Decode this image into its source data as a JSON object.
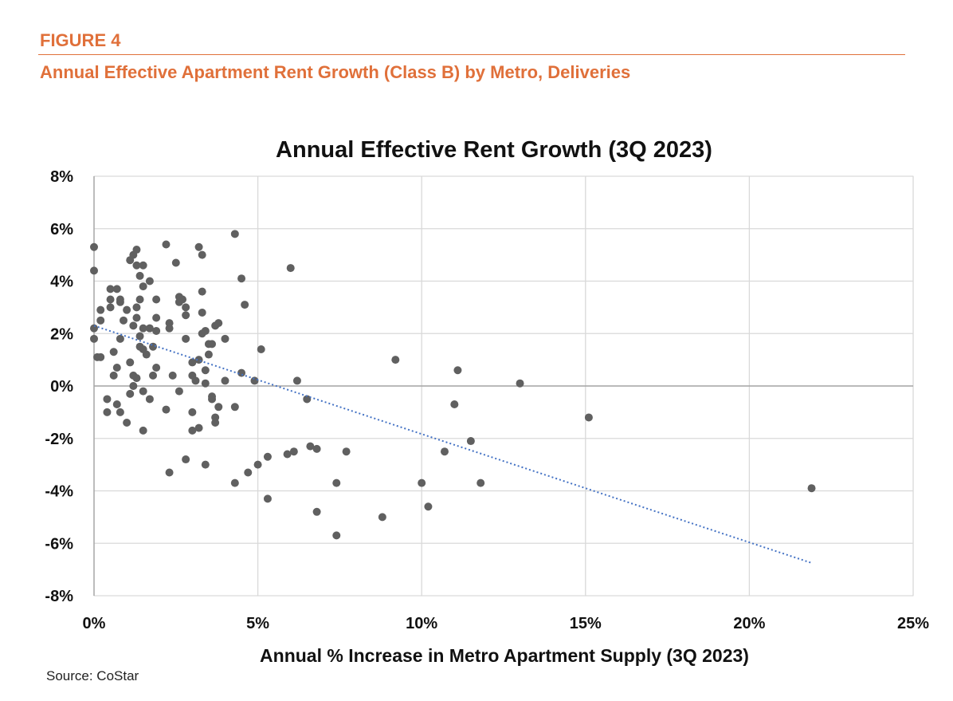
{
  "figure": {
    "label": "FIGURE 4",
    "title": "Annual Effective Apartment Rent Growth (Class B) by Metro, Deliveries",
    "source": "Source: CoStar"
  },
  "chart_data": {
    "type": "scatter",
    "title": "Annual Effective Rent Growth (3Q 2023)",
    "xlabel": "Annual % Increase in Metro Apartment Supply (3Q 2023)",
    "ylabel": "",
    "xlim": [
      0,
      25
    ],
    "ylim": [
      -8,
      8
    ],
    "x_ticks": [
      0,
      5,
      10,
      15,
      20,
      25
    ],
    "x_tick_labels": [
      "0%",
      "5%",
      "10%",
      "15%",
      "20%",
      "25%"
    ],
    "y_ticks": [
      8,
      6,
      4,
      2,
      0,
      -2,
      -4,
      -6,
      -8
    ],
    "y_tick_labels": [
      "8%",
      "6%",
      "4%",
      "2%",
      "0%",
      "-2%",
      "-4%",
      "-6%",
      "-8%"
    ],
    "grid": true,
    "point_color": "#606060",
    "trendline": {
      "type": "linear",
      "color": "#4472c4",
      "x": [
        0,
        21.9
      ],
      "y": [
        2.3,
        -6.75
      ]
    },
    "points": [
      [
        0,
        5.3
      ],
      [
        0,
        4.4
      ],
      [
        0,
        2.2
      ],
      [
        0,
        1.8
      ],
      [
        0.1,
        1.1
      ],
      [
        0.2,
        1.1
      ],
      [
        0.2,
        2.9
      ],
      [
        0.2,
        2.5
      ],
      [
        0.4,
        -0.5
      ],
      [
        0.4,
        -1.0
      ],
      [
        0.5,
        3.7
      ],
      [
        0.5,
        3.3
      ],
      [
        0.5,
        3.0
      ],
      [
        0.6,
        0.4
      ],
      [
        0.6,
        1.3
      ],
      [
        0.7,
        3.7
      ],
      [
        0.7,
        -0.7
      ],
      [
        0.7,
        0.7
      ],
      [
        0.8,
        1.8
      ],
      [
        0.8,
        3.3
      ],
      [
        0.8,
        3.2
      ],
      [
        0.8,
        -1.0
      ],
      [
        0.9,
        2.5
      ],
      [
        1.0,
        2.9
      ],
      [
        1.0,
        -1.4
      ],
      [
        1.1,
        -0.3
      ],
      [
        1.1,
        4.8
      ],
      [
        1.1,
        0.9
      ],
      [
        1.2,
        2.3
      ],
      [
        1.2,
        0.4
      ],
      [
        1.2,
        0.0
      ],
      [
        1.2,
        5.0
      ],
      [
        1.3,
        2.6
      ],
      [
        1.3,
        5.2
      ],
      [
        1.3,
        4.6
      ],
      [
        1.3,
        0.3
      ],
      [
        1.3,
        3.0
      ],
      [
        1.4,
        3.3
      ],
      [
        1.4,
        1.9
      ],
      [
        1.4,
        1.5
      ],
      [
        1.4,
        4.2
      ],
      [
        1.5,
        -1.7
      ],
      [
        1.5,
        3.8
      ],
      [
        1.5,
        4.6
      ],
      [
        1.5,
        2.2
      ],
      [
        1.5,
        -0.2
      ],
      [
        1.5,
        1.4
      ],
      [
        1.6,
        1.2
      ],
      [
        1.7,
        2.2
      ],
      [
        1.7,
        4.0
      ],
      [
        1.7,
        -0.5
      ],
      [
        1.8,
        1.5
      ],
      [
        1.8,
        0.4
      ],
      [
        1.9,
        0.7
      ],
      [
        1.9,
        3.3
      ],
      [
        1.9,
        2.6
      ],
      [
        1.9,
        2.1
      ],
      [
        2.2,
        -0.9
      ],
      [
        2.2,
        5.4
      ],
      [
        2.3,
        -3.3
      ],
      [
        2.3,
        2.4
      ],
      [
        2.3,
        2.2
      ],
      [
        2.4,
        0.4
      ],
      [
        2.5,
        4.7
      ],
      [
        2.6,
        -0.2
      ],
      [
        2.6,
        3.4
      ],
      [
        2.6,
        3.2
      ],
      [
        2.7,
        3.3
      ],
      [
        2.8,
        3.0
      ],
      [
        2.8,
        2.7
      ],
      [
        2.8,
        -2.8
      ],
      [
        2.8,
        1.8
      ],
      [
        3.0,
        0.4
      ],
      [
        3.0,
        -1.7
      ],
      [
        3.0,
        -1.0
      ],
      [
        3.0,
        0.9
      ],
      [
        3.1,
        0.2
      ],
      [
        3.2,
        -1.6
      ],
      [
        3.2,
        5.3
      ],
      [
        3.2,
        1.0
      ],
      [
        3.3,
        2.0
      ],
      [
        3.3,
        5.0
      ],
      [
        3.3,
        3.6
      ],
      [
        3.3,
        2.8
      ],
      [
        3.4,
        -3.0
      ],
      [
        3.4,
        2.1
      ],
      [
        3.4,
        0.6
      ],
      [
        3.4,
        0.1
      ],
      [
        3.5,
        1.6
      ],
      [
        3.5,
        1.2
      ],
      [
        3.6,
        1.6
      ],
      [
        3.6,
        -0.5
      ],
      [
        3.6,
        -0.4
      ],
      [
        3.7,
        2.3
      ],
      [
        3.7,
        -1.2
      ],
      [
        3.7,
        -1.4
      ],
      [
        3.8,
        2.4
      ],
      [
        3.8,
        -0.8
      ],
      [
        4.0,
        1.8
      ],
      [
        4.0,
        0.2
      ],
      [
        4.3,
        -3.7
      ],
      [
        4.3,
        5.8
      ],
      [
        4.3,
        -0.8
      ],
      [
        4.5,
        0.5
      ],
      [
        4.5,
        4.1
      ],
      [
        4.6,
        3.1
      ],
      [
        4.7,
        -3.3
      ],
      [
        4.9,
        0.2
      ],
      [
        5.0,
        -3.0
      ],
      [
        5.1,
        1.4
      ],
      [
        5.3,
        -2.7
      ],
      [
        5.3,
        -4.3
      ],
      [
        5.9,
        -2.6
      ],
      [
        6.0,
        4.5
      ],
      [
        6.1,
        -2.5
      ],
      [
        6.2,
        0.2
      ],
      [
        6.5,
        -0.5
      ],
      [
        6.6,
        -2.3
      ],
      [
        6.8,
        -2.4
      ],
      [
        6.8,
        -4.8
      ],
      [
        7.4,
        -3.7
      ],
      [
        7.4,
        -5.7
      ],
      [
        7.7,
        -2.5
      ],
      [
        8.8,
        -5.0
      ],
      [
        9.2,
        1.0
      ],
      [
        10.0,
        -3.7
      ],
      [
        10.2,
        -4.6
      ],
      [
        10.7,
        -2.5
      ],
      [
        11.0,
        -0.7
      ],
      [
        11.1,
        0.6
      ],
      [
        11.5,
        -2.1
      ],
      [
        11.8,
        -3.7
      ],
      [
        13.0,
        0.1
      ],
      [
        15.1,
        -1.2
      ],
      [
        21.9,
        -3.9
      ]
    ]
  }
}
